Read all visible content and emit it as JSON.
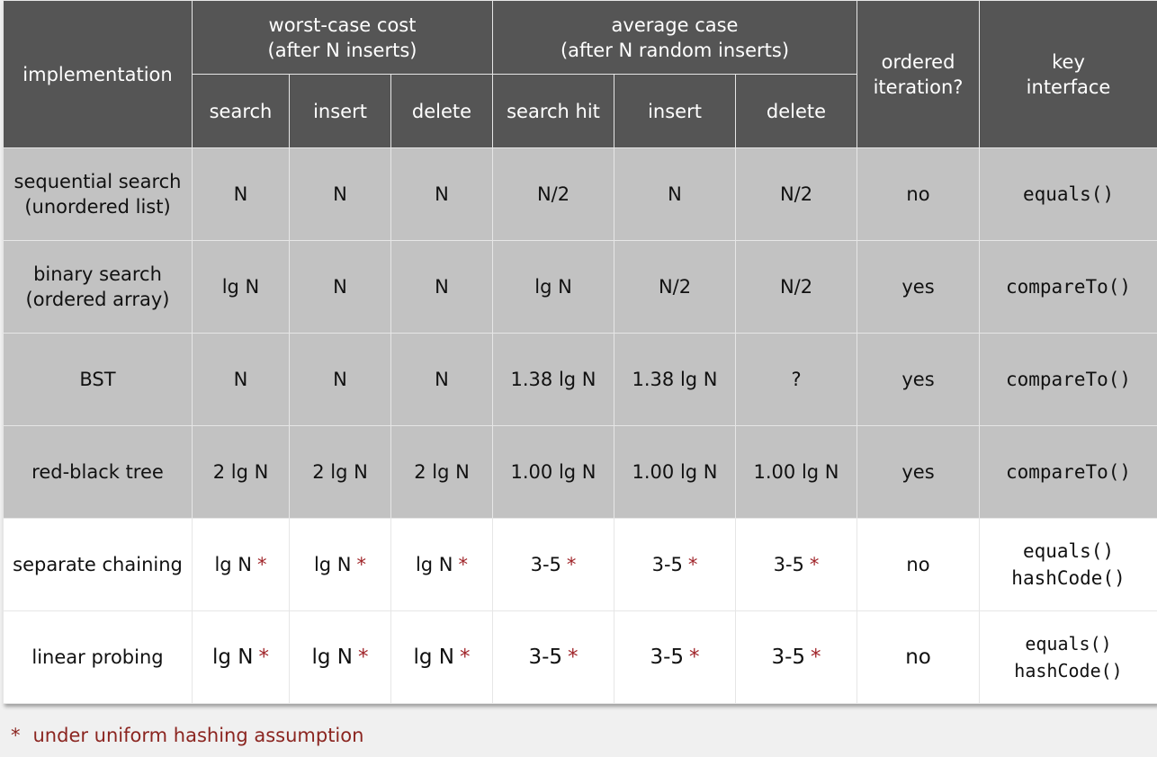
{
  "header": {
    "implementation": "implementation",
    "worst_case_title": "worst-case cost",
    "worst_case_subtitle": "(after N inserts)",
    "average_case_title": "average case",
    "average_case_subtitle": "(after N random inserts)",
    "ordered_line1": "ordered",
    "ordered_line2": "iteration?",
    "key_line1": "key",
    "key_line2": "interface",
    "worst_cols": [
      "search",
      "insert",
      "delete"
    ],
    "avg_cols": [
      "search hit",
      "insert",
      "delete"
    ]
  },
  "rows": [
    {
      "impl_line1": "sequential search",
      "impl_line2": "(unordered list)",
      "worst": [
        "N",
        "N",
        "N"
      ],
      "avg": [
        "N/2",
        "N",
        "N/2"
      ],
      "ordered": "no",
      "key_line1": "equals()",
      "key_line2": ""
    },
    {
      "impl_line1": "binary search",
      "impl_line2": "(ordered array)",
      "worst": [
        "lg N",
        "N",
        "N"
      ],
      "avg": [
        "lg N",
        "N/2",
        "N/2"
      ],
      "ordered": "yes",
      "key_line1": "compareTo()",
      "key_line2": ""
    },
    {
      "impl_line1": "BST",
      "impl_line2": "",
      "worst": [
        "N",
        "N",
        "N"
      ],
      "avg": [
        "1.38 lg N",
        "1.38 lg N",
        "?"
      ],
      "ordered": "yes",
      "key_line1": "compareTo()",
      "key_line2": ""
    },
    {
      "impl_line1": "red-black tree",
      "impl_line2": "",
      "worst": [
        "2 lg N",
        "2 lg N",
        "2 lg N"
      ],
      "avg": [
        "1.00 lg N",
        "1.00 lg N",
        "1.00 lg N"
      ],
      "ordered": "yes",
      "key_line1": "compareTo()",
      "key_line2": ""
    },
    {
      "impl_line1": "separate chaining",
      "impl_line2": "",
      "worst": [
        "lg N",
        "lg N",
        "lg N"
      ],
      "avg": [
        "3-5",
        "3-5",
        "3-5"
      ],
      "ordered": "no",
      "key_line1": "equals()",
      "key_line2": "hashCode()"
    },
    {
      "impl_line1": "linear probing",
      "impl_line2": "",
      "worst": [
        "lg N",
        "lg N",
        "lg N"
      ],
      "avg": [
        "3-5",
        "3-5",
        "3-5"
      ],
      "ordered": "no",
      "key_line1": "equals()",
      "key_line2": "hashCode()"
    }
  ],
  "star_symbol": "*",
  "footnote": {
    "star": "*",
    "text": "under uniform hashing assumption"
  },
  "colors": {
    "header_bg": "#555555",
    "gray_row_bg": "#c2c2c2",
    "white_row_bg": "#ffffff",
    "star": "#a0252a",
    "footnote_text": "#8b2520"
  }
}
